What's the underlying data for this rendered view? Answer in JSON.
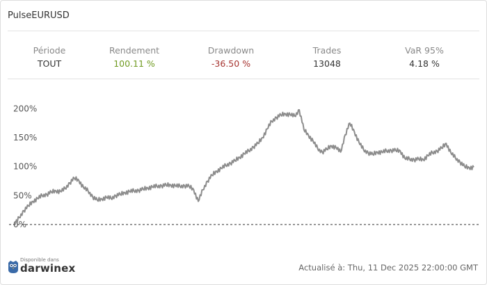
{
  "title": "PulseEURUSD",
  "stats": [
    {
      "label": "Période",
      "value": "TOUT",
      "tone": "neutral"
    },
    {
      "label": "Rendement",
      "value": "100.11 %",
      "tone": "pos"
    },
    {
      "label": "Drawdown",
      "value": "-36.50 %",
      "tone": "neg"
    },
    {
      "label": "Trades",
      "value": "13048",
      "tone": "neutral"
    },
    {
      "label": "VaR 95%",
      "value": "4.18 %",
      "tone": "neutral"
    }
  ],
  "footer": {
    "available": "Disponible dans",
    "brand": "darwinex",
    "updated": "Actualisé à: Thu, 11 Dec 2025 22:00:00 GMT"
  },
  "colors": {
    "line": "#8c8c8c",
    "baseline": "#333333",
    "positive": "#6f9a1f",
    "negative": "#a6332f"
  },
  "chart_data": {
    "type": "line",
    "title": "",
    "xlabel": "",
    "ylabel": "",
    "yticks": [
      "0%",
      "50%",
      "100%",
      "150%",
      "200%"
    ],
    "ylim": [
      0,
      210
    ],
    "x": [
      0,
      1,
      2,
      3,
      4,
      5,
      6,
      7,
      8,
      9,
      10,
      11,
      12,
      13,
      14,
      15,
      16,
      17,
      18,
      19,
      20,
      21,
      22,
      23,
      24,
      25,
      26,
      27,
      28,
      29,
      30,
      31,
      32,
      33,
      34,
      35,
      36,
      37,
      38,
      39,
      40,
      41,
      42,
      43,
      44,
      45,
      46,
      47,
      48,
      49,
      50,
      51,
      52,
      53,
      54,
      55,
      56,
      57,
      58,
      59,
      60,
      61,
      62,
      63,
      64,
      65,
      66,
      67,
      68,
      69,
      70,
      71,
      72,
      73,
      74,
      75,
      76,
      77,
      78,
      79,
      80,
      81,
      82,
      83,
      84,
      85,
      86,
      87,
      88,
      89,
      90,
      91,
      92,
      93,
      94,
      95,
      96,
      97,
      98,
      99,
      100
    ],
    "series": [
      {
        "values": [
          0,
          12,
          24,
          32,
          40,
          45,
          50,
          52,
          56,
          58,
          57,
          62,
          72,
          80,
          76,
          64,
          58,
          48,
          42,
          44,
          47,
          45,
          50,
          52,
          55,
          57,
          58,
          59,
          61,
          63,
          65,
          66,
          67,
          68,
          68,
          67,
          66,
          67,
          66,
          60,
          40,
          60,
          75,
          85,
          92,
          97,
          102,
          106,
          110,
          116,
          122,
          127,
          134,
          140,
          150,
          165,
          178,
          185,
          189,
          191,
          190,
          187,
          198,
          164,
          154,
          144,
          131,
          125,
          130,
          136,
          133,
          125,
          155,
          175,
          160,
          142,
          129,
          124,
          121,
          125,
          125,
          127,
          128,
          128,
          127,
          114,
          113,
          112,
          113,
          112,
          119,
          124,
          127,
          132,
          140,
          124,
          115,
          108,
          100,
          98,
          99
        ]
      }
    ]
  }
}
